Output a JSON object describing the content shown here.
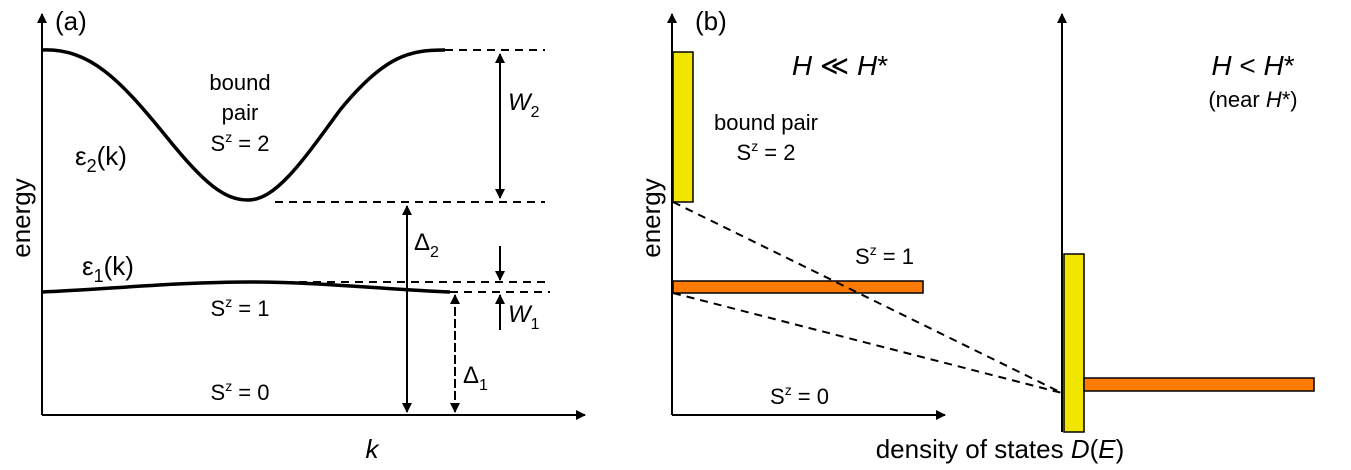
{
  "panel_a": {
    "label": "(a)",
    "ylabel": "energy",
    "xlabel": "k",
    "curve2": {
      "eps": "ε",
      "sub": "2",
      "arg": "(k)"
    },
    "curve1": {
      "eps": "ε",
      "sub": "1",
      "arg": "(k)"
    },
    "bound_line1": "bound",
    "bound_line2": "pair",
    "sz2": {
      "S": "S",
      "z": "z",
      "rest": " = 2"
    },
    "sz1": {
      "S": "S",
      "z": "z",
      "rest": " = 1"
    },
    "sz0": {
      "S": "S",
      "z": "z",
      "rest": " = 0"
    },
    "w2": {
      "sym": "W",
      "sub": "2"
    },
    "w1": {
      "sym": "W",
      "sub": "1"
    },
    "d2": {
      "sym": "Δ",
      "sub": "2"
    },
    "d1": {
      "sym": "Δ",
      "sub": "1"
    }
  },
  "panel_b": {
    "label": "(b)",
    "ylabel": "energy",
    "xlabel_text": "density of states ",
    "xlabel_D": "D",
    "xlabel_open": "(",
    "xlabel_E": "E",
    "xlabel_close": ")",
    "title_left": {
      "H": "H",
      "rel": " ≪ ",
      "H2": "H",
      "star": "*"
    },
    "title_right": {
      "H": "H",
      "rel": " < ",
      "H2": "H",
      "star": "*"
    },
    "near_open": "(near ",
    "near_H": "H",
    "near_close": "*)",
    "bound_pair": "bound pair",
    "sz2": {
      "S": "S",
      "z": "z",
      "rest": " = 2"
    },
    "sz1": {
      "S": "S",
      "z": "z",
      "rest": " = 1"
    },
    "sz0": {
      "S": "S",
      "z": "z",
      "rest": " = 0"
    }
  },
  "colors": {
    "sz2_box": "#f2e500",
    "sz1_box": "#ff7a00",
    "ink": "#000000"
  }
}
